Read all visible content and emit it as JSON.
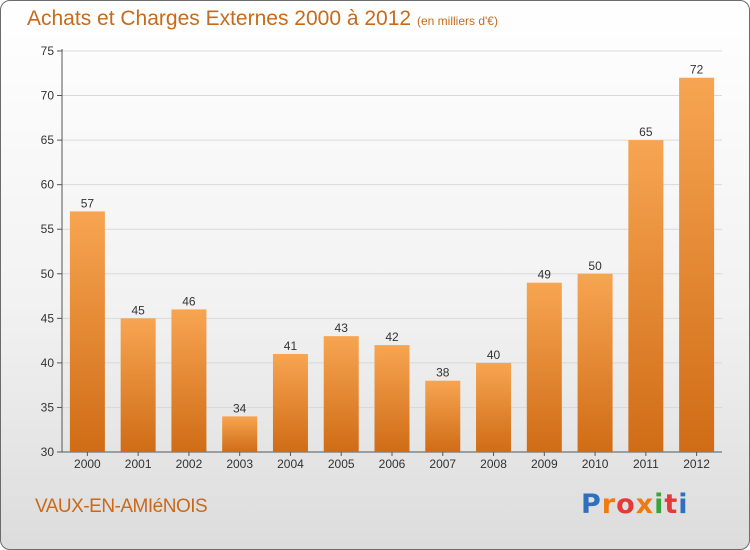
{
  "header": {
    "title": "Achats et Charges Externes 2000 à 2012",
    "subtitle": "(en milliers d'€)"
  },
  "footer": {
    "commune": "VAUX-EN-AMIéNOIS",
    "logo_letters": [
      "P",
      "r",
      "o",
      "x",
      "i",
      "t",
      "i"
    ],
    "logo_colors": [
      "#2f6fc0",
      "#f07a12",
      "#e53a3a",
      "#f07a12",
      "#3aa43a",
      "#e53a3a",
      "#2f6fc0"
    ]
  },
  "colors": {
    "bar_top": "#f7a552",
    "bar_bottom": "#d06c16",
    "text": "#c86a1a",
    "grid": "#d9d9d9"
  },
  "chart_data": {
    "type": "bar",
    "title": "Achats et Charges Externes 2000 à 2012",
    "subtitle": "(en milliers d'€)",
    "categories": [
      "2000",
      "2001",
      "2002",
      "2003",
      "2004",
      "2005",
      "2006",
      "2007",
      "2008",
      "2009",
      "2010",
      "2011",
      "2012"
    ],
    "values": [
      57,
      45,
      46,
      34,
      41,
      43,
      42,
      38,
      40,
      49,
      50,
      65,
      72
    ],
    "ylim": [
      30,
      75
    ],
    "yticks": [
      30,
      35,
      40,
      45,
      50,
      55,
      60,
      65,
      70,
      75
    ],
    "grid": true,
    "xlabel": "",
    "ylabel": ""
  }
}
